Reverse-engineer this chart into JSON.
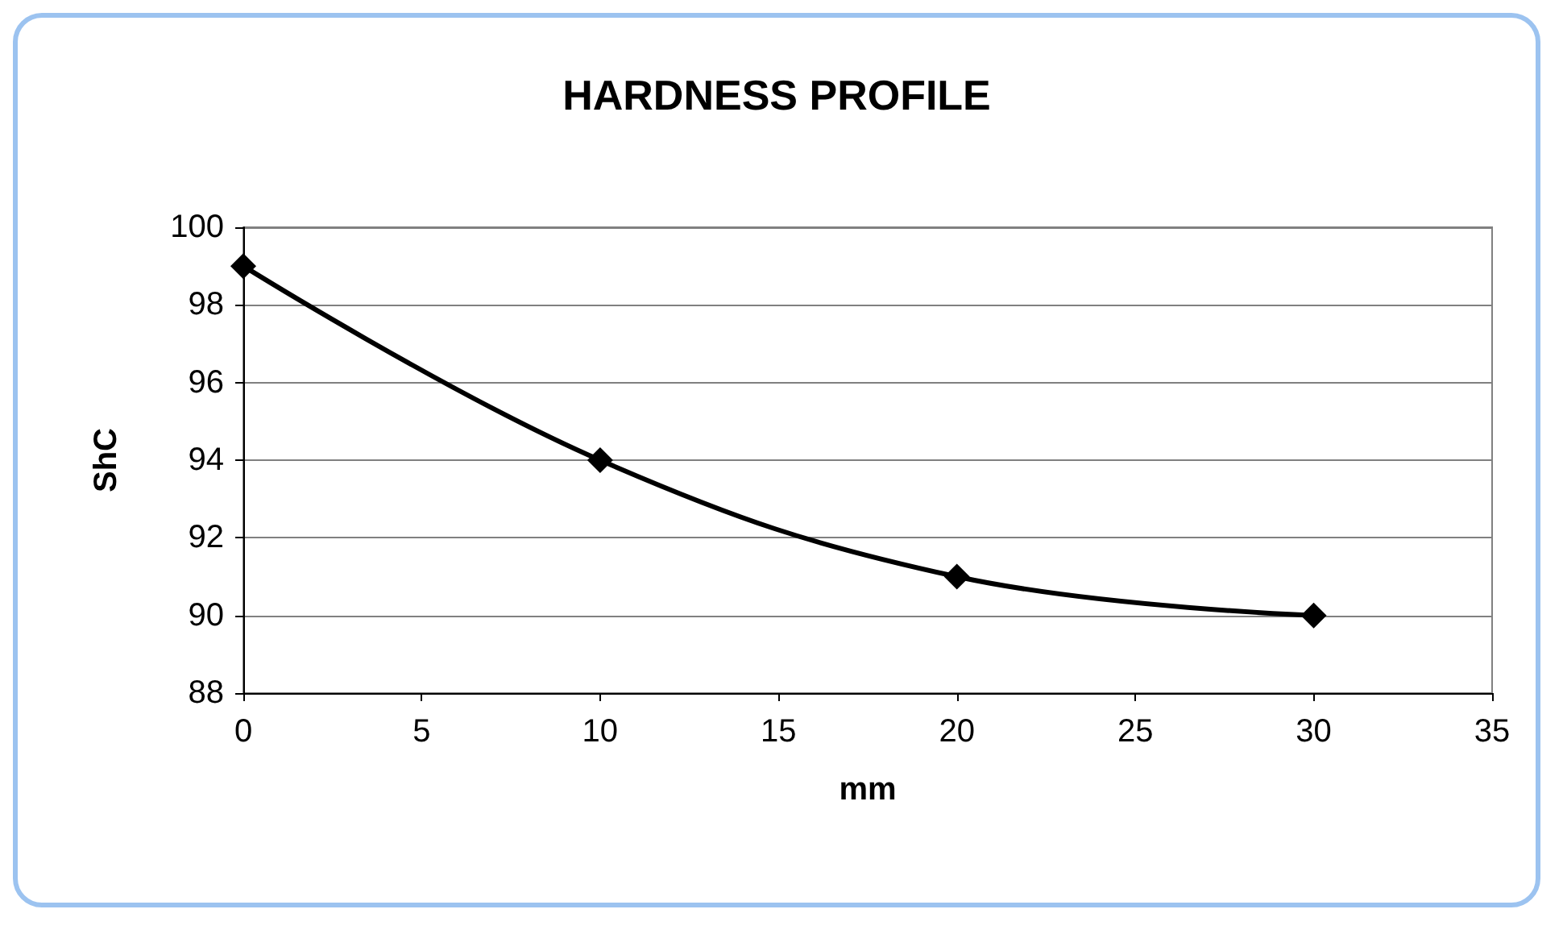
{
  "chart_data": {
    "type": "line",
    "title": "HARDNESS PROFILE",
    "xlabel": "mm",
    "ylabel": "ShC",
    "x": [
      0,
      10,
      20,
      30
    ],
    "series": [
      {
        "color": "#000000",
        "values": [
          99,
          94,
          91,
          90
        ]
      }
    ],
    "xlim": [
      0,
      35
    ],
    "xticks": [
      0,
      5,
      10,
      15,
      20,
      25,
      30,
      35
    ],
    "ylim": [
      88,
      100
    ],
    "yticks": [
      88,
      90,
      92,
      94,
      96,
      98,
      100
    ],
    "grid": "y",
    "marker": "diamond",
    "line_style": "solid"
  }
}
